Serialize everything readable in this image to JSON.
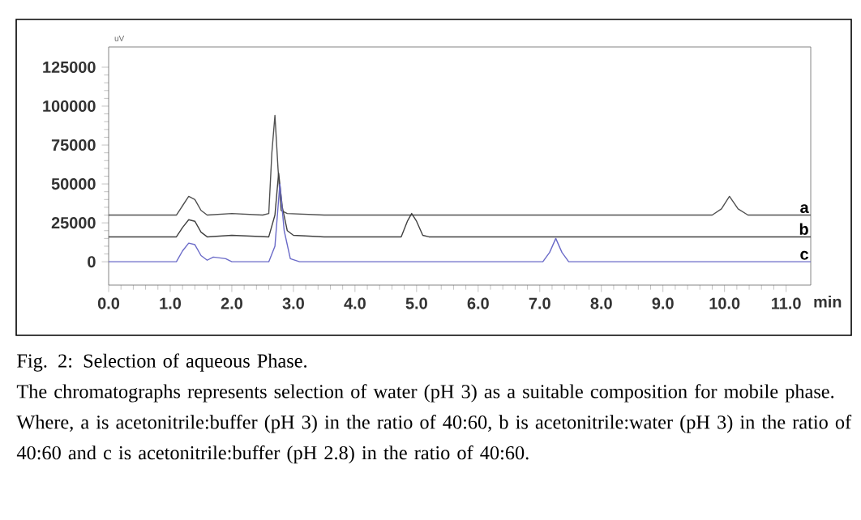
{
  "chart_data": {
    "type": "line",
    "title": "Fig. 2: Selection of aqueous Phase.",
    "annotations": [
      "The chromatographs represents selection of water (pH 3) as a suitable composition for mobile phase. Where, a is acetonitrile:buffer (pH 3) in the ratio of 40:60, b is acetonitrile:water (pH 3) in the ratio of 40:60 and c is acetonitrile:buffer (pH 2.8) in the ratio of 40:60."
    ],
    "xlabel": "min",
    "ylabel": "uV",
    "xlim": [
      0,
      11.4
    ],
    "ylim": [
      -15000,
      138000
    ],
    "xticks": [
      {
        "value": 0,
        "label": "0.0"
      },
      {
        "value": 1,
        "label": "1.0"
      },
      {
        "value": 2,
        "label": "2.0"
      },
      {
        "value": 3,
        "label": "3.0"
      },
      {
        "value": 4,
        "label": "4.0"
      },
      {
        "value": 5,
        "label": "5.0"
      },
      {
        "value": 6,
        "label": "6.0"
      },
      {
        "value": 7,
        "label": "7.0"
      },
      {
        "value": 8,
        "label": "8.0"
      },
      {
        "value": 9,
        "label": "9.0"
      },
      {
        "value": 10,
        "label": "10.0"
      },
      {
        "value": 11,
        "label": "11.0"
      }
    ],
    "yticks": [
      0,
      25000,
      50000,
      75000,
      100000,
      125000
    ],
    "grid": false,
    "marker": "none",
    "line_style": "solid",
    "series": [
      {
        "name": "a",
        "color": "#505050",
        "x": [
          0,
          1.1,
          1.2,
          1.3,
          1.4,
          1.5,
          1.6,
          2.0,
          2.5,
          2.6,
          2.65,
          2.7,
          2.75,
          2.8,
          2.9,
          3.5,
          9.8,
          9.95,
          10.08,
          10.22,
          10.38,
          11.4
        ],
        "values": [
          30000,
          30000,
          36000,
          42000,
          40000,
          33000,
          30000,
          31000,
          30000,
          31000,
          70000,
          94000,
          60000,
          33000,
          31000,
          30000,
          30000,
          34000,
          42000,
          34000,
          30000,
          30000
        ]
      },
      {
        "name": "b",
        "color": "#404040",
        "x": [
          0,
          1.1,
          1.2,
          1.3,
          1.4,
          1.5,
          1.6,
          2.0,
          2.6,
          2.7,
          2.76,
          2.82,
          2.9,
          3.0,
          3.5,
          4.5,
          4.75,
          4.85,
          4.92,
          5.0,
          5.1,
          5.2,
          11.4
        ],
        "values": [
          16000,
          16000,
          22000,
          27000,
          26000,
          19000,
          16000,
          17000,
          16000,
          30000,
          57000,
          35000,
          20000,
          17000,
          16000,
          16000,
          16000,
          26000,
          31000,
          26000,
          17000,
          16000,
          16000
        ]
      },
      {
        "name": "c",
        "color": "#6a6ac8",
        "x": [
          0,
          1.1,
          1.2,
          1.3,
          1.4,
          1.5,
          1.6,
          1.7,
          1.9,
          2.0,
          2.6,
          2.7,
          2.78,
          2.85,
          2.95,
          3.1,
          6.0,
          7.05,
          7.16,
          7.26,
          7.36,
          7.47,
          11.4
        ],
        "values": [
          0,
          0,
          7000,
          12000,
          11000,
          4000,
          1000,
          3000,
          2000,
          0,
          0,
          10000,
          50000,
          20000,
          2000,
          0,
          0,
          0,
          6000,
          15000,
          6000,
          0,
          0
        ]
      }
    ]
  }
}
